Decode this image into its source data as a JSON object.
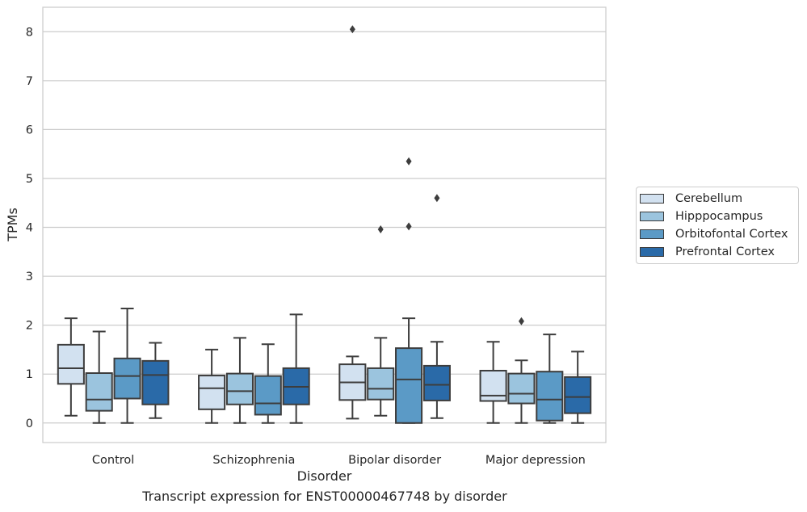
{
  "chart_data": {
    "type": "box",
    "title": "",
    "xlabel": "Disorder",
    "ylabel": "TPMs",
    "ylim": [
      -0.4,
      8.5
    ],
    "yticks": [
      0,
      1,
      2,
      3,
      4,
      5,
      6,
      7,
      8
    ],
    "grid": "horizontal",
    "legend_position": "right",
    "categories": [
      "Control",
      "Schizophrenia",
      "Bipolar disorder",
      "Major depression"
    ],
    "series": [
      {
        "name": "Cerebellum",
        "color": "#d2e1f0",
        "boxes": [
          {
            "whisker_low": 0.15,
            "q1": 0.8,
            "median": 1.12,
            "q3": 1.6,
            "whisker_high": 2.14,
            "outliers": []
          },
          {
            "whisker_low": 0.0,
            "q1": 0.28,
            "median": 0.71,
            "q3": 0.97,
            "whisker_high": 1.5,
            "outliers": []
          },
          {
            "whisker_low": 0.09,
            "q1": 0.47,
            "median": 0.83,
            "q3": 1.2,
            "whisker_high": 1.36,
            "outliers": [
              8.05
            ]
          },
          {
            "whisker_low": 0.0,
            "q1": 0.45,
            "median": 0.56,
            "q3": 1.07,
            "whisker_high": 1.66,
            "outliers": []
          }
        ]
      },
      {
        "name": "Hipppocampus",
        "color": "#9bc4de",
        "boxes": [
          {
            "whisker_low": 0.0,
            "q1": 0.25,
            "median": 0.48,
            "q3": 1.02,
            "whisker_high": 1.87,
            "outliers": []
          },
          {
            "whisker_low": 0.0,
            "q1": 0.38,
            "median": 0.65,
            "q3": 1.01,
            "whisker_high": 1.74,
            "outliers": []
          },
          {
            "whisker_low": 0.15,
            "q1": 0.48,
            "median": 0.7,
            "q3": 1.12,
            "whisker_high": 1.74,
            "outliers": [
              3.96
            ]
          },
          {
            "whisker_low": 0.0,
            "q1": 0.4,
            "median": 0.6,
            "q3": 1.01,
            "whisker_high": 1.28,
            "outliers": [
              2.08
            ]
          }
        ]
      },
      {
        "name": "Orbitofontal Cortex",
        "color": "#5b9ac6",
        "boxes": [
          {
            "whisker_low": 0.0,
            "q1": 0.5,
            "median": 0.96,
            "q3": 1.32,
            "whisker_high": 2.34,
            "outliers": []
          },
          {
            "whisker_low": 0.0,
            "q1": 0.17,
            "median": 0.4,
            "q3": 0.96,
            "whisker_high": 1.61,
            "outliers": []
          },
          {
            "whisker_low": 0.0,
            "q1": 0.0,
            "median": 0.89,
            "q3": 1.53,
            "whisker_high": 2.14,
            "outliers": [
              5.35,
              4.02
            ]
          },
          {
            "whisker_low": 0.0,
            "q1": 0.05,
            "median": 0.48,
            "q3": 1.05,
            "whisker_high": 1.81,
            "outliers": []
          }
        ]
      },
      {
        "name": "Prefrontal Cortex",
        "color": "#2a6aa8",
        "boxes": [
          {
            "whisker_low": 0.1,
            "q1": 0.38,
            "median": 0.98,
            "q3": 1.27,
            "whisker_high": 1.64,
            "outliers": []
          },
          {
            "whisker_low": 0.0,
            "q1": 0.38,
            "median": 0.74,
            "q3": 1.12,
            "whisker_high": 2.22,
            "outliers": []
          },
          {
            "whisker_low": 0.1,
            "q1": 0.46,
            "median": 0.78,
            "q3": 1.17,
            "whisker_high": 1.66,
            "outliers": [
              4.6
            ]
          },
          {
            "whisker_low": 0.0,
            "q1": 0.2,
            "median": 0.53,
            "q3": 0.94,
            "whisker_high": 1.46,
            "outliers": []
          }
        ]
      }
    ]
  },
  "caption": "Transcript expression for ENST00000467748 by disorder"
}
